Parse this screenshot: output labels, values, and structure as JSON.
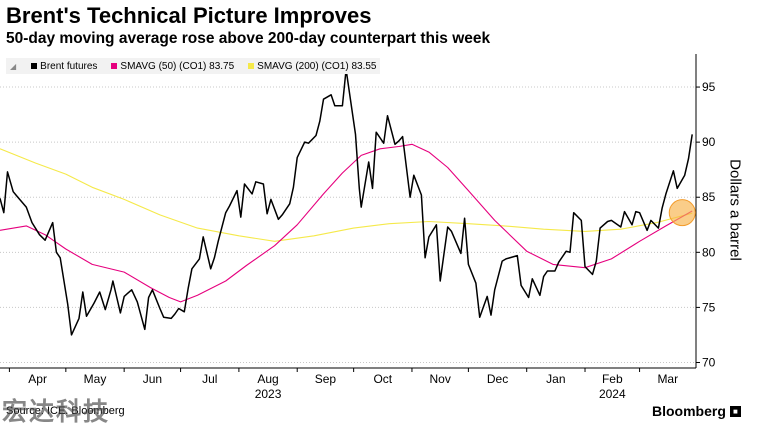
{
  "title": "Brent's Technical Picture Improves",
  "subtitle": "50-day moving average rose above 200-day counterpart this week",
  "legend": [
    {
      "label": "Brent futures",
      "color": "#000000"
    },
    {
      "label": "SMAVG (50) (CO1) 83.75",
      "color": "#e6007e"
    },
    {
      "label": "SMAVG (200) (CO1) 83.55",
      "color": "#f5e94a"
    }
  ],
  "footer": "Source: ICE, Bloomberg",
  "watermark": "宏达科技",
  "brand": "Bloomberg",
  "chart_data": {
    "type": "line",
    "ylabel": "Dollars a barrel",
    "ylim": [
      69.5,
      98
    ],
    "y_ticks": [
      70,
      75,
      80,
      85,
      90,
      95
    ],
    "x_range": [
      "2023-03-27",
      "2024-03-31"
    ],
    "x_tick_labels": [
      {
        "label": "Apr",
        "date": "2023-04-01"
      },
      {
        "label": "May",
        "date": "2023-05-01"
      },
      {
        "label": "Jun",
        "date": "2023-06-01"
      },
      {
        "label": "Jul",
        "date": "2023-07-01"
      },
      {
        "label": "Aug",
        "date": "2023-08-01",
        "year": "2023"
      },
      {
        "label": "Sep",
        "date": "2023-09-01"
      },
      {
        "label": "Oct",
        "date": "2023-10-01"
      },
      {
        "label": "Nov",
        "date": "2023-11-01"
      },
      {
        "label": "Dec",
        "date": "2023-12-01"
      },
      {
        "label": "Jan",
        "date": "2024-01-01"
      },
      {
        "label": "Feb",
        "date": "2024-02-01",
        "year": "2024"
      },
      {
        "label": "Mar",
        "date": "2024-03-01"
      }
    ],
    "series": [
      {
        "name": "Brent futures",
        "color": "#000000",
        "points": [
          [
            "2023-03-27",
            84.9
          ],
          [
            "2023-03-29",
            83.6
          ],
          [
            "2023-03-31",
            87.3
          ],
          [
            "2023-04-03",
            85.5
          ],
          [
            "2023-04-05",
            85.1
          ],
          [
            "2023-04-10",
            84.1
          ],
          [
            "2023-04-13",
            82.7
          ],
          [
            "2023-04-17",
            81.6
          ],
          [
            "2023-04-20",
            81.1
          ],
          [
            "2023-04-24",
            82.7
          ],
          [
            "2023-04-26",
            80.0
          ],
          [
            "2023-04-28",
            79.5
          ],
          [
            "2023-05-02",
            75.3
          ],
          [
            "2023-05-04",
            72.5
          ],
          [
            "2023-05-08",
            74.0
          ],
          [
            "2023-05-10",
            76.4
          ],
          [
            "2023-05-12",
            74.2
          ],
          [
            "2023-05-16",
            75.4
          ],
          [
            "2023-05-19",
            76.4
          ],
          [
            "2023-05-22",
            74.8
          ],
          [
            "2023-05-25",
            76.6
          ],
          [
            "2023-05-26",
            77.4
          ],
          [
            "2023-05-30",
            74.5
          ],
          [
            "2023-06-01",
            76.0
          ],
          [
            "2023-06-05",
            76.6
          ],
          [
            "2023-06-08",
            75.5
          ],
          [
            "2023-06-12",
            73.0
          ],
          [
            "2023-06-14",
            75.9
          ],
          [
            "2023-06-16",
            76.6
          ],
          [
            "2023-06-20",
            74.9
          ],
          [
            "2023-06-22",
            74.1
          ],
          [
            "2023-06-26",
            74.0
          ],
          [
            "2023-06-28",
            74.4
          ],
          [
            "2023-06-30",
            74.9
          ],
          [
            "2023-07-03",
            74.6
          ],
          [
            "2023-07-05",
            76.7
          ],
          [
            "2023-07-07",
            78.5
          ],
          [
            "2023-07-11",
            79.4
          ],
          [
            "2023-07-13",
            81.4
          ],
          [
            "2023-07-17",
            78.5
          ],
          [
            "2023-07-19",
            79.5
          ],
          [
            "2023-07-21",
            81.0
          ],
          [
            "2023-07-25",
            83.6
          ],
          [
            "2023-07-27",
            84.2
          ],
          [
            "2023-07-31",
            85.6
          ],
          [
            "2023-08-02",
            83.2
          ],
          [
            "2023-08-04",
            86.2
          ],
          [
            "2023-08-08",
            85.3
          ],
          [
            "2023-08-10",
            86.4
          ],
          [
            "2023-08-14",
            86.2
          ],
          [
            "2023-08-16",
            83.5
          ],
          [
            "2023-08-18",
            84.8
          ],
          [
            "2023-08-22",
            83.0
          ],
          [
            "2023-08-24",
            83.4
          ],
          [
            "2023-08-28",
            84.4
          ],
          [
            "2023-08-30",
            85.9
          ],
          [
            "2023-09-01",
            88.6
          ],
          [
            "2023-09-05",
            90.0
          ],
          [
            "2023-09-07",
            89.9
          ],
          [
            "2023-09-11",
            90.6
          ],
          [
            "2023-09-13",
            91.9
          ],
          [
            "2023-09-15",
            93.9
          ],
          [
            "2023-09-19",
            94.3
          ],
          [
            "2023-09-21",
            93.3
          ],
          [
            "2023-09-25",
            93.3
          ],
          [
            "2023-09-27",
            96.6
          ],
          [
            "2023-09-28",
            95.4
          ],
          [
            "2023-10-02",
            90.7
          ],
          [
            "2023-10-04",
            85.8
          ],
          [
            "2023-10-05",
            84.1
          ],
          [
            "2023-10-09",
            88.2
          ],
          [
            "2023-10-11",
            85.8
          ],
          [
            "2023-10-13",
            90.9
          ],
          [
            "2023-10-17",
            89.9
          ],
          [
            "2023-10-19",
            92.4
          ],
          [
            "2023-10-23",
            89.8
          ],
          [
            "2023-10-25",
            90.1
          ],
          [
            "2023-10-27",
            90.5
          ],
          [
            "2023-10-31",
            85.0
          ],
          [
            "2023-11-02",
            87.0
          ],
          [
            "2023-11-06",
            85.2
          ],
          [
            "2023-11-08",
            79.5
          ],
          [
            "2023-11-10",
            81.4
          ],
          [
            "2023-11-14",
            82.5
          ],
          [
            "2023-11-16",
            77.4
          ],
          [
            "2023-11-20",
            82.3
          ],
          [
            "2023-11-22",
            81.9
          ],
          [
            "2023-11-27",
            79.9
          ],
          [
            "2023-11-29",
            83.1
          ],
          [
            "2023-12-01",
            78.9
          ],
          [
            "2023-12-05",
            77.2
          ],
          [
            "2023-12-07",
            74.1
          ],
          [
            "2023-12-11",
            76.0
          ],
          [
            "2023-12-13",
            74.3
          ],
          [
            "2023-12-15",
            76.6
          ],
          [
            "2023-12-19",
            79.2
          ],
          [
            "2023-12-21",
            79.4
          ],
          [
            "2023-12-27",
            79.7
          ],
          [
            "2023-12-29",
            77.0
          ],
          [
            "2024-01-02",
            75.9
          ],
          [
            "2024-01-04",
            77.6
          ],
          [
            "2024-01-08",
            76.1
          ],
          [
            "2024-01-10",
            77.8
          ],
          [
            "2024-01-12",
            78.3
          ],
          [
            "2024-01-16",
            78.3
          ],
          [
            "2024-01-18",
            79.1
          ],
          [
            "2024-01-22",
            80.1
          ],
          [
            "2024-01-24",
            80.0
          ],
          [
            "2024-01-26",
            83.6
          ],
          [
            "2024-01-30",
            82.9
          ],
          [
            "2024-02-01",
            78.7
          ],
          [
            "2024-02-05",
            78.0
          ],
          [
            "2024-02-07",
            79.2
          ],
          [
            "2024-02-09",
            82.2
          ],
          [
            "2024-02-13",
            82.8
          ],
          [
            "2024-02-15",
            82.9
          ],
          [
            "2024-02-20",
            82.3
          ],
          [
            "2024-02-22",
            83.7
          ],
          [
            "2024-02-26",
            82.5
          ],
          [
            "2024-02-28",
            83.7
          ],
          [
            "2024-03-01",
            83.6
          ],
          [
            "2024-03-05",
            82.0
          ],
          [
            "2024-03-07",
            82.9
          ],
          [
            "2024-03-11",
            82.2
          ],
          [
            "2024-03-13",
            84.0
          ],
          [
            "2024-03-15",
            85.3
          ],
          [
            "2024-03-19",
            87.4
          ],
          [
            "2024-03-21",
            85.8
          ],
          [
            "2024-03-25",
            87.0
          ],
          [
            "2024-03-27",
            88.5
          ],
          [
            "2024-03-29",
            90.7
          ]
        ]
      },
      {
        "name": "SMAVG (50) (CO1) 83.75",
        "color": "#e6007e",
        "points": [
          [
            "2023-03-27",
            82.0
          ],
          [
            "2023-04-10",
            82.4
          ],
          [
            "2023-04-20",
            81.6
          ],
          [
            "2023-05-01",
            80.3
          ],
          [
            "2023-05-15",
            78.9
          ],
          [
            "2023-06-01",
            78.2
          ],
          [
            "2023-06-15",
            76.8
          ],
          [
            "2023-06-25",
            75.9
          ],
          [
            "2023-07-01",
            75.5
          ],
          [
            "2023-07-10",
            76.1
          ],
          [
            "2023-07-25",
            77.4
          ],
          [
            "2023-08-05",
            78.8
          ],
          [
            "2023-08-20",
            80.6
          ],
          [
            "2023-09-01",
            82.5
          ],
          [
            "2023-09-15",
            85.3
          ],
          [
            "2023-09-25",
            87.2
          ],
          [
            "2023-10-05",
            88.8
          ],
          [
            "2023-10-15",
            89.4
          ],
          [
            "2023-10-25",
            89.6
          ],
          [
            "2023-11-01",
            89.8
          ],
          [
            "2023-11-10",
            89.1
          ],
          [
            "2023-11-20",
            87.7
          ],
          [
            "2023-12-01",
            85.6
          ],
          [
            "2023-12-15",
            82.9
          ],
          [
            "2024-01-01",
            80.1
          ],
          [
            "2024-01-15",
            78.9
          ],
          [
            "2024-02-01",
            78.6
          ],
          [
            "2024-02-15",
            79.4
          ],
          [
            "2024-03-01",
            81.0
          ],
          [
            "2024-03-15",
            82.4
          ],
          [
            "2024-03-29",
            83.75
          ]
        ]
      },
      {
        "name": "SMAVG (200) (CO1) 83.55",
        "color": "#f5e94a",
        "points": [
          [
            "2023-03-27",
            89.4
          ],
          [
            "2023-04-15",
            88.1
          ],
          [
            "2023-05-01",
            87.1
          ],
          [
            "2023-05-15",
            85.9
          ],
          [
            "2023-06-01",
            84.8
          ],
          [
            "2023-06-20",
            83.4
          ],
          [
            "2023-07-10",
            82.2
          ],
          [
            "2023-08-01",
            81.5
          ],
          [
            "2023-08-20",
            81.0
          ],
          [
            "2023-09-10",
            81.5
          ],
          [
            "2023-10-01",
            82.2
          ],
          [
            "2023-10-20",
            82.6
          ],
          [
            "2023-11-10",
            82.8
          ],
          [
            "2023-12-01",
            82.6
          ],
          [
            "2023-12-20",
            82.4
          ],
          [
            "2024-01-10",
            82.1
          ],
          [
            "2024-02-01",
            81.9
          ],
          [
            "2024-02-20",
            82.1
          ],
          [
            "2024-03-10",
            82.7
          ],
          [
            "2024-03-29",
            83.55
          ]
        ]
      }
    ],
    "annotation": {
      "type": "highlight-circle",
      "date": "2024-03-29",
      "value": 83.6,
      "color": "#f7b24a"
    }
  }
}
